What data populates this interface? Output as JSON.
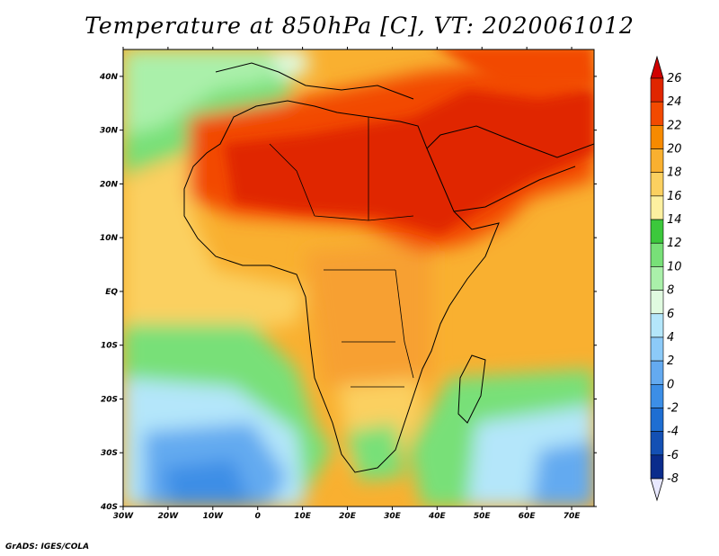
{
  "title": "Temperature at 850hPa [C], VT: 2020061012",
  "credit": "GrADS: IGES/COLA",
  "map": {
    "lon_range": [
      -30,
      75
    ],
    "lat_range": [
      -40,
      45
    ],
    "lon_ticks": [
      "30W",
      "20W",
      "10W",
      "0",
      "10E",
      "20E",
      "30E",
      "40E",
      "50E",
      "60E",
      "70E"
    ],
    "lat_ticks": [
      "40S",
      "30S",
      "20S",
      "10S",
      "EQ",
      "10N",
      "20N",
      "30N",
      "40N"
    ]
  },
  "colorbar": {
    "levels": [
      "26",
      "24",
      "22",
      "20",
      "18",
      "16",
      "14",
      "12",
      "10",
      "8",
      "6",
      "4",
      "2",
      "0",
      "-2",
      "-4",
      "-6",
      "-8"
    ],
    "colors": [
      "#e02600",
      "#f24a00",
      "#f78a00",
      "#f9b030",
      "#fbd060",
      "#fdf0a0",
      "#3cc83c",
      "#78e078",
      "#aaf0aa",
      "#e0fae0",
      "#b4e6fa",
      "#8ccaf8",
      "#64aaf0",
      "#3c8ee6",
      "#1e6ed2",
      "#1450b4",
      "#0a2c8c"
    ],
    "under_color": "#e8e8ff",
    "over_color": "#d00000"
  }
}
